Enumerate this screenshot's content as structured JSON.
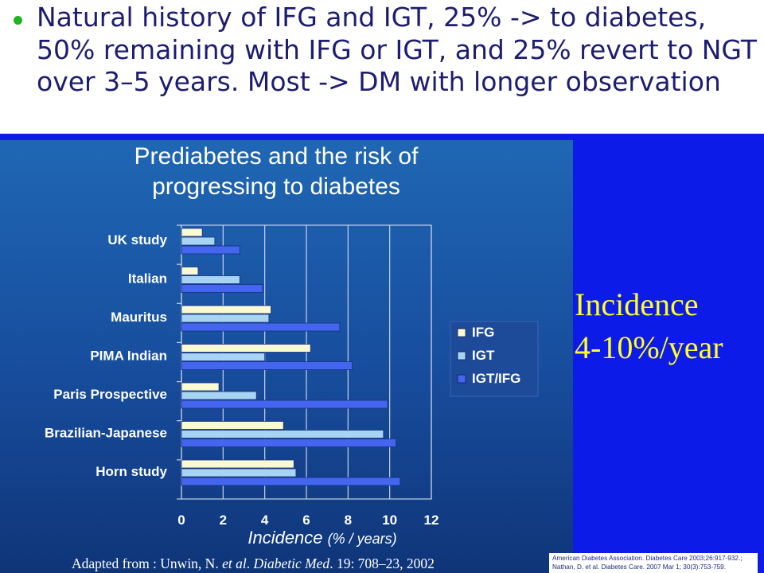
{
  "bullet": {
    "icon": "bullet-dot",
    "text": "Natural history of IFG and IGT, 25% -> to diabetes, 50% remaining with IFG or IGT, and 25% revert to NGT over 3–5 years. Most -> DM with longer observation"
  },
  "callout": {
    "line1": "Incidence",
    "line2": "4-10%/year"
  },
  "citation": {
    "line1": "American Diabetes Association. Diabetes Care 2003;26:917-932.;",
    "line2": "Nathan, D. et al. Diabetes Care. 2007 Mar 1; 30(3):753-759."
  },
  "source_note": {
    "prefix": "Adapted from :  Unwin, N. ",
    "etal": "et al",
    "middle": ".  ",
    "journal": "Diabetic Med",
    "suffix": ". 19: 708–23, 2002"
  },
  "colors": {
    "IFG": "#fafad2",
    "IGT": "#a6d4f2",
    "IGT/IFG": "#4466ee",
    "panel_blue": "#0d1be8",
    "callout_yellow": "#ffff26"
  },
  "chart_data": {
    "type": "bar",
    "orientation": "horizontal",
    "title": "Prediabetes and the risk of progressing to diabetes",
    "title_lines": [
      "Prediabetes and the risk of",
      "progressing to diabetes"
    ],
    "xlabel_main": "Incidence",
    "xlabel_unit": "(% / years)",
    "ylabel": "",
    "categories": [
      "UK study",
      "Italian",
      "Mauritus",
      "PIMA Indian",
      "Paris Prospective",
      "Brazilian-Japanese",
      "Horn study"
    ],
    "series": [
      {
        "name": "IFG",
        "values": [
          1.0,
          0.8,
          4.3,
          6.2,
          1.8,
          4.9,
          5.4
        ]
      },
      {
        "name": "IGT",
        "values": [
          1.6,
          2.8,
          4.2,
          4.0,
          3.6,
          9.7,
          5.5
        ]
      },
      {
        "name": "IGT/IFG",
        "values": [
          2.8,
          3.9,
          7.6,
          8.2,
          9.9,
          10.3,
          10.5
        ]
      }
    ],
    "xlim": [
      0,
      12
    ],
    "xticks": [
      0,
      2,
      4,
      6,
      8,
      10,
      12
    ],
    "grid": true,
    "legend_position": "right"
  }
}
